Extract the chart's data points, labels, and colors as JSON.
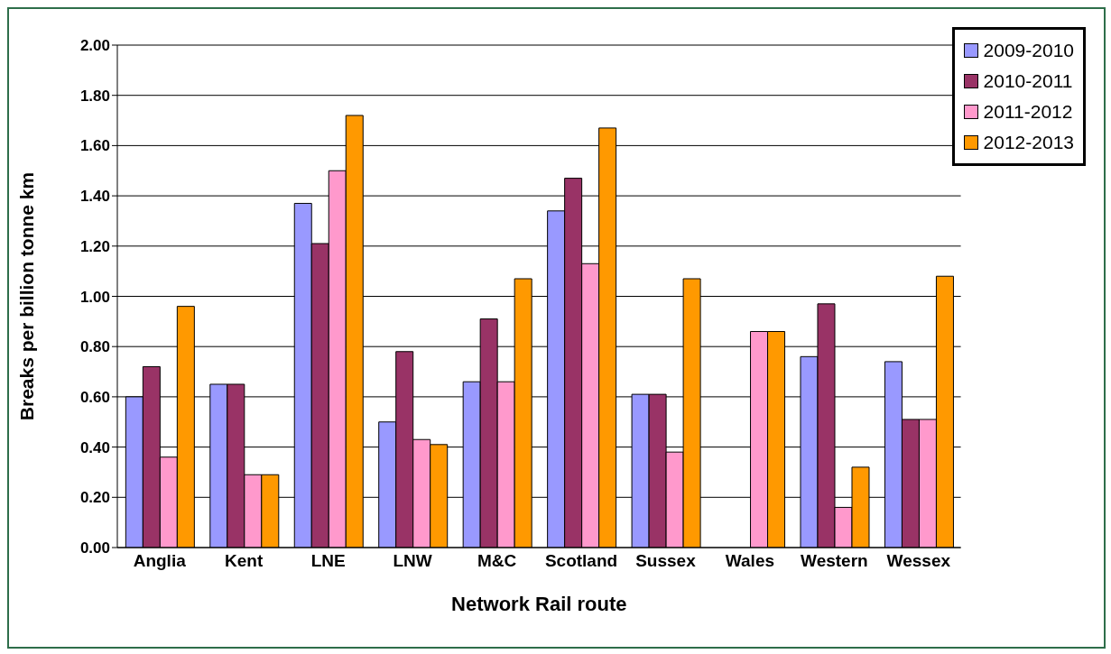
{
  "chart_data": {
    "type": "bar",
    "xlabel": "Network Rail route",
    "ylabel": "Breaks per billion tonne km",
    "categories": [
      "Anglia",
      "Kent",
      "LNE",
      "LNW",
      "M&C",
      "Scotland",
      "Sussex",
      "Wales",
      "Western",
      "Wessex"
    ],
    "series": [
      {
        "name": "2009-2010",
        "color": "#9999ff",
        "values": [
          0.6,
          0.65,
          1.37,
          0.5,
          0.66,
          1.34,
          0.61,
          null,
          0.76,
          0.74
        ]
      },
      {
        "name": "2010-2011",
        "color": "#993366",
        "values": [
          0.72,
          0.65,
          1.21,
          0.78,
          0.91,
          1.47,
          0.61,
          null,
          0.97,
          0.51
        ]
      },
      {
        "name": "2011-2012",
        "color": "#ff99cc",
        "values": [
          0.36,
          0.29,
          1.5,
          0.43,
          0.66,
          1.13,
          0.38,
          0.86,
          0.16,
          0.51
        ]
      },
      {
        "name": "2012-2013",
        "color": "#ff9900",
        "values": [
          0.96,
          0.29,
          1.72,
          0.41,
          1.07,
          1.67,
          1.07,
          0.86,
          0.32,
          1.08
        ]
      }
    ],
    "ylim": [
      0,
      2
    ],
    "yticks": [
      {
        "value": 0,
        "label": "0.00"
      },
      {
        "value": 0.2,
        "label": "0.20"
      },
      {
        "value": 0.4,
        "label": "0.40"
      },
      {
        "value": 0.6,
        "label": "0.60"
      },
      {
        "value": 0.8,
        "label": "0.80"
      },
      {
        "value": 1,
        "label": "1.00"
      },
      {
        "value": 1.2,
        "label": "1.20"
      },
      {
        "value": 1.4,
        "label": "1.40"
      },
      {
        "value": 1.6,
        "label": "1.60"
      },
      {
        "value": 1.8,
        "label": "1.80"
      },
      {
        "value": 2,
        "label": "2.00"
      }
    ],
    "grid": "y",
    "legend": "top right"
  }
}
